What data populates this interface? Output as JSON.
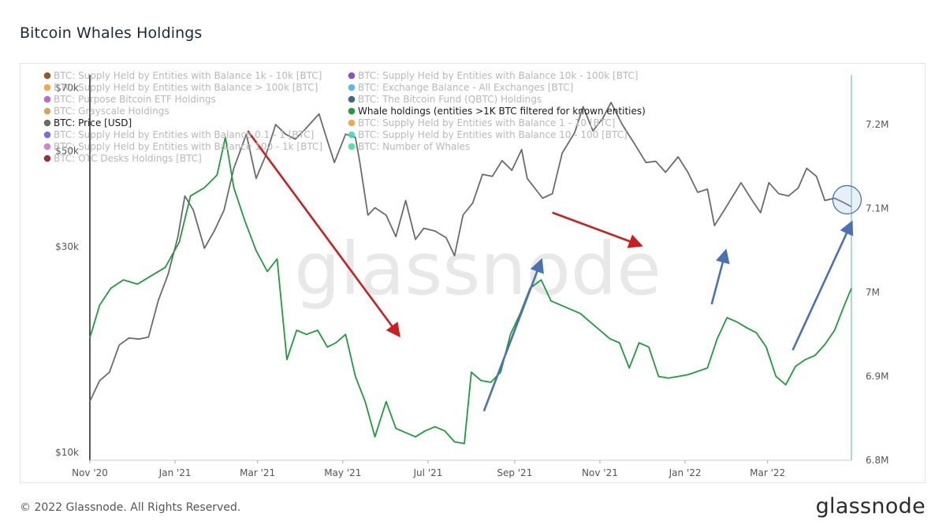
{
  "page": {
    "title": "Bitcoin Whales Holdings",
    "copyright": "© 2022 Glassnode. All Rights Reserved.",
    "brand": "glassnode",
    "watermark": "glassnode"
  },
  "chart_data": {
    "type": "line",
    "title": "Bitcoin Whales Holdings",
    "x_range": [
      "2020-11-01",
      "2022-04-30"
    ],
    "x_ticks": [
      {
        "date": "2020-11-01",
        "label": "Nov '20"
      },
      {
        "date": "2021-01-01",
        "label": "Jan '21"
      },
      {
        "date": "2021-03-01",
        "label": "Mar '21"
      },
      {
        "date": "2021-05-01",
        "label": "May '21"
      },
      {
        "date": "2021-07-01",
        "label": "Jul '21"
      },
      {
        "date": "2021-09-01",
        "label": "Sep '21"
      },
      {
        "date": "2021-11-01",
        "label": "Nov '21"
      },
      {
        "date": "2022-01-01",
        "label": "Jan '22"
      },
      {
        "date": "2022-03-01",
        "label": "Mar '22"
      }
    ],
    "y_left": {
      "scale": "log",
      "range": [
        10000,
        75000
      ],
      "ticks": [
        {
          "value": 10000,
          "label": "$10k"
        },
        {
          "value": 30000,
          "label": "$30k"
        },
        {
          "value": 50000,
          "label": "$50k"
        },
        {
          "value": 70000,
          "label": "$70k"
        }
      ]
    },
    "y_right": {
      "scale": "linear",
      "range": [
        6800000,
        7250000
      ],
      "ticks": [
        {
          "value": 6800000,
          "label": "6.8M"
        },
        {
          "value": 6900000,
          "label": "6.9M"
        },
        {
          "value": 7000000,
          "label": "7M"
        },
        {
          "value": 7100000,
          "label": "7.1M"
        },
        {
          "value": 7200000,
          "label": "7.2M"
        }
      ]
    },
    "legend": {
      "placement": "top-left",
      "columns": [
        [
          {
            "label": "BTC: Supply Held by Entities with Balance 1k - 10k [BTC]",
            "color": "#8b4513",
            "active": false
          },
          {
            "label": "BTC: Supply Held by Entities with Balance > 100k [BTC]",
            "color": "#f0a030",
            "active": false
          },
          {
            "label": "BTC: Purpose Bitcoin ETF Holdings",
            "color": "#b05cc8",
            "active": false
          },
          {
            "label": "BTC: Grayscale Holdings",
            "color": "#c8a048",
            "active": false
          },
          {
            "label": "BTC: Price [USD]",
            "color": "#6b6b6b",
            "active": true
          },
          {
            "label": "BTC: Supply Held by Entities with Balance 0.1 - 1 [BTC]",
            "color": "#6c5ce7",
            "active": false
          },
          {
            "label": "BTC: Supply Held by Entities with Balance 100 - 1k [BTC]",
            "color": "#c878d8",
            "active": false
          },
          {
            "label": "BTC: OTC Desks Holdings [BTC]",
            "color": "#8b1a2a",
            "active": false
          }
        ],
        [
          {
            "label": "BTC: Supply Held by Entities with Balance 10k - 100k [BTC]",
            "color": "#7b3fc8",
            "active": false
          },
          {
            "label": "BTC: Exchange Balance - All Exchanges [BTC]",
            "color": "#4ab0d8",
            "active": false
          },
          {
            "label": "BTC: The Bitcoin Fund (QBTC) Holdings",
            "color": "#2a5a78",
            "active": false
          },
          {
            "label": "Whale holdings (entities >1K BTC filtered for known entities)",
            "color": "#1f9a3c",
            "active": true
          },
          {
            "label": "BTC: Supply Held by Entities with Balance 1 - 10 [BTC]",
            "color": "#f0a030",
            "active": false
          },
          {
            "label": "BTC: Supply Held by Entities with Balance 10 - 100 [BTC]",
            "color": "#40d8c0",
            "active": false
          },
          {
            "label": "BTC: Number of Whales",
            "color": "#40e0a0",
            "active": false
          }
        ]
      ]
    },
    "series": [
      {
        "name": "BTC: Price [USD]",
        "axis": "left",
        "color": "#6b6b6b",
        "points": [
          [
            "2020-11-01",
            13700
          ],
          [
            "2020-11-08",
            15300
          ],
          [
            "2020-11-15",
            16000
          ],
          [
            "2020-11-22",
            18500
          ],
          [
            "2020-11-29",
            19200
          ],
          [
            "2020-12-06",
            19100
          ],
          [
            "2020-12-13",
            19300
          ],
          [
            "2020-12-20",
            23500
          ],
          [
            "2020-12-27",
            27000
          ],
          [
            "2021-01-03",
            33000
          ],
          [
            "2021-01-08",
            41000
          ],
          [
            "2021-01-14",
            38000
          ],
          [
            "2021-01-22",
            31000
          ],
          [
            "2021-01-29",
            34000
          ],
          [
            "2021-02-05",
            38000
          ],
          [
            "2021-02-12",
            47500
          ],
          [
            "2021-02-21",
            57000
          ],
          [
            "2021-02-28",
            45000
          ],
          [
            "2021-03-07",
            51000
          ],
          [
            "2021-03-14",
            60000
          ],
          [
            "2021-03-21",
            57000
          ],
          [
            "2021-03-28",
            55500
          ],
          [
            "2021-04-04",
            58500
          ],
          [
            "2021-04-14",
            63500
          ],
          [
            "2021-04-20",
            55000
          ],
          [
            "2021-04-25",
            49000
          ],
          [
            "2021-05-03",
            57000
          ],
          [
            "2021-05-10",
            56000
          ],
          [
            "2021-05-13",
            49500
          ],
          [
            "2021-05-19",
            37000
          ],
          [
            "2021-05-24",
            38500
          ],
          [
            "2021-06-01",
            37000
          ],
          [
            "2021-06-08",
            33000
          ],
          [
            "2021-06-15",
            40000
          ],
          [
            "2021-06-22",
            32500
          ],
          [
            "2021-06-28",
            34500
          ],
          [
            "2021-07-06",
            34000
          ],
          [
            "2021-07-14",
            32800
          ],
          [
            "2021-07-20",
            29800
          ],
          [
            "2021-07-26",
            37000
          ],
          [
            "2021-08-02",
            39500
          ],
          [
            "2021-08-09",
            46000
          ],
          [
            "2021-08-16",
            45500
          ],
          [
            "2021-08-23",
            49500
          ],
          [
            "2021-08-30",
            47000
          ],
          [
            "2021-09-06",
            52500
          ],
          [
            "2021-09-10",
            45000
          ],
          [
            "2021-09-21",
            40500
          ],
          [
            "2021-09-28",
            41500
          ],
          [
            "2021-10-05",
            51500
          ],
          [
            "2021-10-14",
            57500
          ],
          [
            "2021-10-20",
            66000
          ],
          [
            "2021-10-27",
            58000
          ],
          [
            "2021-11-03",
            62000
          ],
          [
            "2021-11-09",
            67500
          ],
          [
            "2021-11-17",
            60000
          ],
          [
            "2021-11-26",
            54000
          ],
          [
            "2021-12-04",
            49000
          ],
          [
            "2021-12-11",
            49300
          ],
          [
            "2021-12-18",
            46500
          ],
          [
            "2021-12-27",
            50500
          ],
          [
            "2022-01-03",
            46500
          ],
          [
            "2022-01-10",
            41800
          ],
          [
            "2022-01-17",
            42500
          ],
          [
            "2022-01-22",
            35000
          ],
          [
            "2022-01-29",
            38000
          ],
          [
            "2022-02-10",
            44000
          ],
          [
            "2022-02-18",
            40000
          ],
          [
            "2022-02-24",
            37500
          ],
          [
            "2022-03-02",
            44000
          ],
          [
            "2022-03-09",
            41500
          ],
          [
            "2022-03-16",
            41000
          ],
          [
            "2022-03-23",
            42800
          ],
          [
            "2022-03-29",
            47500
          ],
          [
            "2022-04-05",
            45500
          ],
          [
            "2022-04-11",
            40000
          ],
          [
            "2022-04-18",
            40500
          ],
          [
            "2022-04-25",
            39500
          ],
          [
            "2022-04-30",
            38700
          ]
        ]
      },
      {
        "name": "Whale holdings (entities >1K BTC filtered for known entities)",
        "axis": "right",
        "color": "#1f9a3c",
        "points": [
          [
            "2020-11-01",
            6946000
          ],
          [
            "2020-11-08",
            6985000
          ],
          [
            "2020-11-16",
            7005000
          ],
          [
            "2020-11-25",
            7015000
          ],
          [
            "2020-12-05",
            7010000
          ],
          [
            "2020-12-15",
            7020000
          ],
          [
            "2020-12-25",
            7030000
          ],
          [
            "2021-01-04",
            7060000
          ],
          [
            "2021-01-12",
            7115000
          ],
          [
            "2021-01-22",
            7125000
          ],
          [
            "2021-01-31",
            7140000
          ],
          [
            "2021-02-06",
            7185000
          ],
          [
            "2021-02-12",
            7125000
          ],
          [
            "2021-02-20",
            7085000
          ],
          [
            "2021-02-28",
            7050000
          ],
          [
            "2021-03-08",
            7025000
          ],
          [
            "2021-03-15",
            7040000
          ],
          [
            "2021-03-22",
            6920000
          ],
          [
            "2021-03-29",
            6955000
          ],
          [
            "2021-04-05",
            6950000
          ],
          [
            "2021-04-13",
            6955000
          ],
          [
            "2021-04-20",
            6935000
          ],
          [
            "2021-04-26",
            6940000
          ],
          [
            "2021-05-03",
            6950000
          ],
          [
            "2021-05-10",
            6900000
          ],
          [
            "2021-05-17",
            6870000
          ],
          [
            "2021-05-24",
            6828000
          ],
          [
            "2021-06-01",
            6870000
          ],
          [
            "2021-06-08",
            6838000
          ],
          [
            "2021-06-15",
            6833000
          ],
          [
            "2021-06-22",
            6828000
          ],
          [
            "2021-06-29",
            6835000
          ],
          [
            "2021-07-06",
            6840000
          ],
          [
            "2021-07-13",
            6835000
          ],
          [
            "2021-07-20",
            6822000
          ],
          [
            "2021-07-27",
            6820000
          ],
          [
            "2021-08-01",
            6905000
          ],
          [
            "2021-08-08",
            6895000
          ],
          [
            "2021-08-15",
            6893000
          ],
          [
            "2021-08-22",
            6905000
          ],
          [
            "2021-08-29",
            6950000
          ],
          [
            "2021-09-05",
            6975000
          ],
          [
            "2021-09-12",
            7005000
          ],
          [
            "2021-09-20",
            7015000
          ],
          [
            "2021-09-27",
            6990000
          ],
          [
            "2021-10-04",
            6985000
          ],
          [
            "2021-10-11",
            6980000
          ],
          [
            "2021-10-18",
            6975000
          ],
          [
            "2021-10-25",
            6965000
          ],
          [
            "2021-11-01",
            6955000
          ],
          [
            "2021-11-08",
            6945000
          ],
          [
            "2021-11-15",
            6940000
          ],
          [
            "2021-11-22",
            6910000
          ],
          [
            "2021-11-29",
            6940000
          ],
          [
            "2021-12-06",
            6935000
          ],
          [
            "2021-12-13",
            6900000
          ],
          [
            "2021-12-20",
            6898000
          ],
          [
            "2021-12-27",
            6900000
          ],
          [
            "2022-01-03",
            6902000
          ],
          [
            "2022-01-10",
            6906000
          ],
          [
            "2022-01-17",
            6910000
          ],
          [
            "2022-01-24",
            6945000
          ],
          [
            "2022-01-31",
            6970000
          ],
          [
            "2022-02-07",
            6965000
          ],
          [
            "2022-02-14",
            6958000
          ],
          [
            "2022-02-21",
            6952000
          ],
          [
            "2022-02-28",
            6935000
          ],
          [
            "2022-03-07",
            6900000
          ],
          [
            "2022-03-14",
            6890000
          ],
          [
            "2022-03-21",
            6912000
          ],
          [
            "2022-03-28",
            6920000
          ],
          [
            "2022-04-04",
            6925000
          ],
          [
            "2022-04-11",
            6938000
          ],
          [
            "2022-04-18",
            6955000
          ],
          [
            "2022-04-25",
            6985000
          ],
          [
            "2022-04-30",
            7005000
          ]
        ]
      }
    ],
    "annotations": [
      {
        "type": "arrow",
        "color": "#cc1e1e",
        "axis": "left",
        "from": [
          "2021-02-22",
          58000
        ],
        "to": [
          "2021-06-10",
          19500
        ]
      },
      {
        "type": "arrow",
        "color": "#cc1e1e",
        "axis": "left",
        "from": [
          "2021-09-28",
          37500
        ],
        "to": [
          "2021-11-30",
          31500
        ]
      },
      {
        "type": "arrow",
        "color": "#4a72b0",
        "axis": "left",
        "from": [
          "2021-08-10",
          13000
        ],
        "to": [
          "2021-09-20",
          29000
        ]
      },
      {
        "type": "arrow",
        "color": "#4a72b0",
        "axis": "left",
        "from": [
          "2022-01-20",
          23000
        ],
        "to": [
          "2022-01-30",
          30500
        ]
      },
      {
        "type": "arrow",
        "color": "#4a72b0",
        "axis": "left",
        "from": [
          "2022-03-19",
          18000
        ],
        "to": [
          "2022-04-30",
          35500
        ]
      },
      {
        "type": "circle",
        "color": "#4a72b0",
        "axis": "left",
        "at": [
          "2022-04-28",
          39500
        ]
      }
    ]
  }
}
